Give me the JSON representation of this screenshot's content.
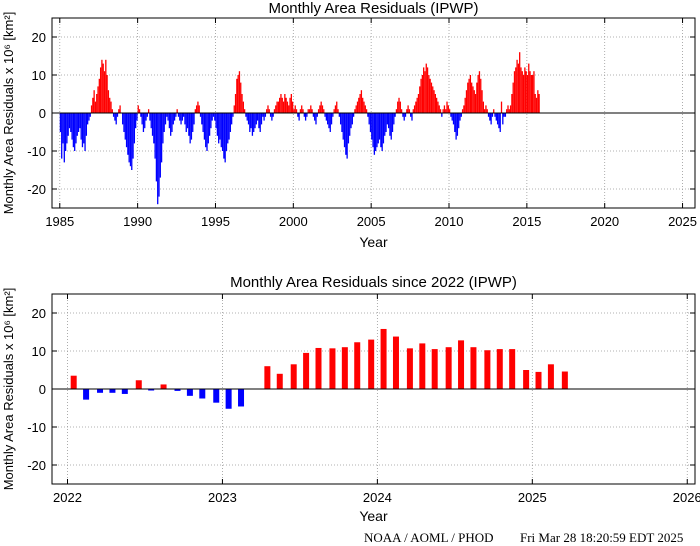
{
  "colors": {
    "positive": "#ff0000",
    "negative": "#0000ff",
    "grid": "#999999",
    "zero_line": "#000000"
  },
  "footer": {
    "source": "NOAA / AOML / PHOD",
    "timestamp": "Fri Mar 28 18:20:59 EDT 2025"
  },
  "chart_data": [
    {
      "type": "bar",
      "title": "Monthly Area Residuals (IPWP)",
      "xlabel": "Year",
      "ylabel": "Monthly Area Residuals x 10⁶ [km²]",
      "xlim": [
        1984.5,
        2025.8
      ],
      "ylim": [
        -25,
        25
      ],
      "x_ticks": [
        1985,
        1990,
        1995,
        2000,
        2005,
        2010,
        2015,
        2020,
        2025
      ],
      "y_ticks": [
        -20,
        -10,
        0,
        10,
        20
      ],
      "grid": true,
      "series": [
        {
          "x_start": 1985.04,
          "x_step": 0.08333,
          "values": [
            -5,
            -12,
            -8,
            -13,
            -10,
            -8,
            -6,
            -4,
            -5,
            -7,
            -9,
            -10,
            -8,
            -6,
            -5,
            -4,
            -7,
            -9,
            -8,
            -10,
            -6,
            -3,
            -2,
            -1,
            2,
            4,
            6,
            3,
            5,
            7,
            9,
            12,
            14,
            13,
            11,
            14,
            10,
            6,
            4,
            3,
            1,
            -1,
            -2,
            -3,
            -1,
            1,
            2,
            0,
            -3,
            -5,
            -7,
            -9,
            -11,
            -13,
            -14,
            -15,
            -12,
            -8,
            -4,
            -2,
            2,
            1,
            -1,
            -3,
            -5,
            -4,
            -2,
            -1,
            1,
            -2,
            -4,
            -6,
            -8,
            -12,
            -18,
            -24,
            -22,
            -17,
            -13,
            -8,
            -5,
            -3,
            -1,
            -2,
            -4,
            -6,
            -5,
            -3,
            -2,
            -1,
            1,
            -1,
            -2,
            -3,
            -2,
            -1,
            -3,
            -5,
            -4,
            -6,
            -8,
            -7,
            -5,
            -3,
            1,
            2,
            3,
            2,
            -1,
            -3,
            -5,
            -7,
            -9,
            -10,
            -8,
            -6,
            -4,
            -2,
            -1,
            -2,
            -4,
            -6,
            -8,
            -7,
            -9,
            -10,
            -12,
            -13,
            -10,
            -8,
            -7,
            -5,
            -3,
            -1,
            2,
            5,
            9,
            10,
            11,
            8,
            5,
            3,
            1,
            -1,
            -2,
            -3,
            -5,
            -4,
            -6,
            -5,
            -4,
            -3,
            -2,
            -4,
            -5,
            -3,
            -1,
            -2,
            -1,
            1,
            2,
            1,
            -1,
            -2,
            -1,
            1,
            2,
            3,
            3,
            4,
            5,
            4,
            3,
            5,
            4,
            3,
            2,
            4,
            5,
            3,
            1,
            2,
            1,
            -1,
            -2,
            1,
            2,
            1,
            -1,
            -2,
            -1,
            1,
            1,
            2,
            1,
            -1,
            -2,
            -3,
            -1,
            1,
            2,
            3,
            2,
            1,
            -1,
            -2,
            -3,
            -4,
            -5,
            -3,
            -1,
            1,
            2,
            3,
            1,
            -1,
            -3,
            -5,
            -7,
            -9,
            -11,
            -12,
            -8,
            -6,
            -4,
            -3,
            -1,
            1,
            2,
            3,
            4,
            5,
            6,
            4,
            3,
            2,
            1,
            -1,
            -3,
            -5,
            -7,
            -9,
            -11,
            -10,
            -9,
            -8,
            -7,
            -9,
            -10,
            -8,
            -6,
            -5,
            -3,
            -4,
            -6,
            -7,
            -5,
            -3,
            -1,
            1,
            3,
            4,
            3,
            1,
            -1,
            -2,
            -1,
            1,
            2,
            1,
            -1,
            -2,
            1,
            2,
            3,
            4,
            5,
            7,
            9,
            10,
            12,
            11,
            13,
            12,
            10,
            9,
            8,
            7,
            6,
            5,
            4,
            3,
            2,
            1,
            -1,
            1,
            2,
            1,
            3,
            2,
            1,
            -1,
            -2,
            -3,
            -5,
            -7,
            -6,
            -4,
            -2,
            -1,
            1,
            2,
            4,
            6,
            8,
            9,
            10,
            8,
            7,
            6,
            5,
            8,
            10,
            11,
            9,
            6,
            3,
            1,
            2,
            1,
            -1,
            -2,
            -3,
            -1,
            1,
            -1,
            -2,
            -3,
            -4,
            -5,
            3,
            -3,
            -1,
            -1,
            1,
            2,
            1,
            2,
            5,
            8,
            11,
            12,
            14,
            13,
            16,
            12,
            11,
            10,
            12,
            11,
            10,
            13,
            11,
            10,
            10,
            11,
            5,
            4,
            6,
            5
          ]
        }
      ]
    },
    {
      "type": "bar",
      "title": "Monthly Area Residuals since 2022 (IPWP)",
      "xlabel": "Year",
      "ylabel": "Monthly Area Residuals x 10⁶ [km²]",
      "xlim": [
        2021.9,
        2026.05
      ],
      "ylim": [
        -25,
        25
      ],
      "x_ticks": [
        2022,
        2023,
        2024,
        2025,
        2026
      ],
      "y_ticks": [
        -20,
        -10,
        0,
        10,
        20
      ],
      "grid": true,
      "series": [
        {
          "x": [
            2022.04,
            2022.12,
            2022.21,
            2022.29,
            2022.37,
            2022.46,
            2022.54,
            2022.62,
            2022.71,
            2022.79,
            2022.87,
            2022.96,
            2023.04,
            2023.12,
            2023.21,
            2023.29,
            2023.37,
            2023.46,
            2023.54,
            2023.62,
            2023.71,
            2023.79,
            2023.87,
            2023.96,
            2024.04,
            2024.12,
            2024.21,
            2024.29,
            2024.37,
            2024.46,
            2024.54,
            2024.62,
            2024.71,
            2024.79,
            2024.87,
            2024.96,
            2025.04,
            2025.12,
            2025.21
          ],
          "values": [
            3.5,
            -2.8,
            -1.0,
            -1.0,
            -1.3,
            2.3,
            -0.4,
            1.2,
            -0.5,
            -1.8,
            -2.5,
            -3.6,
            -5.2,
            -4.6,
            0.0,
            6.0,
            4.0,
            6.5,
            9.5,
            10.8,
            10.7,
            11.0,
            12.3,
            13.0,
            15.8,
            13.8,
            10.7,
            12.0,
            10.5,
            11.0,
            12.8,
            11.0,
            10.2,
            10.5,
            10.5,
            5.0,
            4.5,
            6.5,
            4.6
          ]
        }
      ]
    }
  ]
}
